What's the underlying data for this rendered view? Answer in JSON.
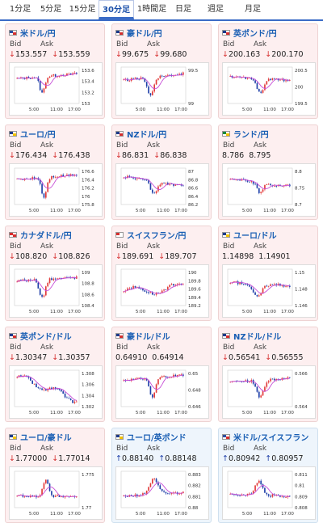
{
  "tabs": [
    {
      "label": "1分足",
      "active": false
    },
    {
      "label": "5分足",
      "active": false
    },
    {
      "label": "15分足",
      "active": false
    },
    {
      "label": "30分足",
      "active": true
    },
    {
      "label": "1時間足",
      "active": false
    },
    {
      "label": "日足",
      "active": false
    },
    {
      "label": "週足",
      "active": false
    },
    {
      "label": "月足",
      "active": false
    }
  ],
  "labels": {
    "bid": "Bid",
    "ask": "Ask"
  },
  "x_ticks": [
    "5:00",
    "11:00",
    "17:00"
  ],
  "colors": {
    "up": "#e23a3a",
    "down": "#1f3fa8",
    "ma": "#c64cd6",
    "pair": "#1a5fb4"
  },
  "cards": [
    {
      "pair": "米ドル/円",
      "arrow": "↓",
      "bid": "153.557",
      "ask": "153.559",
      "bg": "pink",
      "yticks": [
        "153.6",
        "153.4",
        "153.2",
        "153"
      ],
      "flag": "us"
    },
    {
      "pair": "豪ドル/円",
      "arrow": "↓",
      "bid": "99.675",
      "ask": "99.680",
      "bg": "pink",
      "yticks": [
        "99.5",
        "99"
      ],
      "flag": "au"
    },
    {
      "pair": "英ポンド/円",
      "arrow": "↓",
      "bid": "200.163",
      "ask": "200.170",
      "bg": "pink",
      "yticks": [
        "200.5",
        "200",
        "199.5"
      ],
      "flag": "gb"
    },
    {
      "pair": "ユーロ/円",
      "arrow": "↓",
      "bid": "176.434",
      "ask": "176.438",
      "bg": "pink",
      "yticks": [
        "176.6",
        "176.4",
        "176.2",
        "176",
        "175.8"
      ],
      "flag": "eu"
    },
    {
      "pair": "NZドル/円",
      "arrow": "↓",
      "bid": "86.831",
      "ask": "86.838",
      "bg": "pink",
      "yticks": [
        "87",
        "86.8",
        "86.6",
        "86.4",
        "86.2"
      ],
      "flag": "nz"
    },
    {
      "pair": "ランド/円",
      "arrow": "",
      "bid": "8.786",
      "ask": "8.795",
      "bg": "pink",
      "yticks": [
        "8.8",
        "8.75",
        "8.7"
      ],
      "flag": "za"
    },
    {
      "pair": "カナダドル/円",
      "arrow": "↓",
      "bid": "108.820",
      "ask": "108.826",
      "bg": "pink",
      "yticks": [
        "109",
        "108.8",
        "108.6",
        "108.4"
      ],
      "flag": "ca"
    },
    {
      "pair": "スイスフラン/円",
      "arrow": "↓",
      "bid": "189.691",
      "ask": "189.707",
      "bg": "pink",
      "yticks": [
        "190",
        "189.8",
        "189.6",
        "189.4",
        "189.2"
      ],
      "flag": "ch"
    },
    {
      "pair": "ユーロ/ドル",
      "arrow": "",
      "bid": "1.14898",
      "ask": "1.14901",
      "bg": "pink",
      "yticks": [
        "1.15",
        "1.148",
        "1.146"
      ],
      "flag": "eu"
    },
    {
      "pair": "英ポンド/ドル",
      "arrow": "↓",
      "bid": "1.30347",
      "ask": "1.30357",
      "bg": "pink",
      "yticks": [
        "1.308",
        "1.306",
        "1.304",
        "1.302"
      ],
      "flag": "gb"
    },
    {
      "pair": "豪ドル/ドル",
      "arrow": "",
      "bid": "0.64910",
      "ask": "0.64914",
      "bg": "pink",
      "yticks": [
        "0.65",
        "0.648",
        "0.646"
      ],
      "flag": "au"
    },
    {
      "pair": "NZドル/ドル",
      "arrow": "↓",
      "bid": "0.56541",
      "ask": "0.56555",
      "bg": "pink",
      "yticks": [
        "0.566",
        "0.564"
      ],
      "flag": "nz"
    },
    {
      "pair": "ユーロ/豪ドル",
      "arrow": "↓",
      "bid": "1.77000",
      "ask": "1.77014",
      "bg": "pink",
      "yticks": [
        "1.775",
        "1.77"
      ],
      "flag": "eu"
    },
    {
      "pair": "ユーロ/英ポンド",
      "arrow": "↑",
      "bid": "0.88140",
      "ask": "0.88148",
      "bg": "blue",
      "yticks": [
        "0.883",
        "0.882",
        "0.881",
        "0.88"
      ],
      "flag": "eu"
    },
    {
      "pair": "米ドル/スイスフラン",
      "arrow": "↑",
      "bid": "0.80942",
      "ask": "0.80957",
      "bg": "blue",
      "yticks": [
        "0.811",
        "0.81",
        "0.809",
        "0.808"
      ],
      "flag": "us"
    }
  ]
}
